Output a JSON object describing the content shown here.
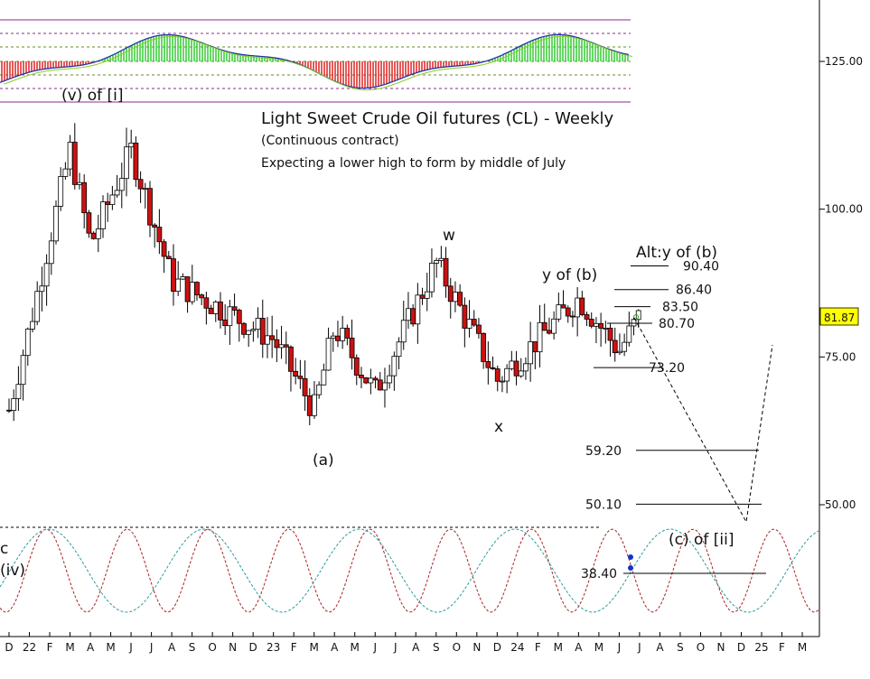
{
  "chart_data": {
    "type": "candlestick",
    "title": "Light Sweet Crude Oil futures (CL) - Weekly",
    "subtitle": "(Continuous contract)",
    "note": "Expecting a lower high to form by middle of July",
    "y_ticks": [
      "125.00",
      "100.00",
      "75.00",
      "50.00"
    ],
    "price_badge": "81.87",
    "x_ticks": [
      "D",
      "22",
      "F",
      "M",
      "A",
      "M",
      "J",
      "J",
      "A",
      "S",
      "O",
      "N",
      "D",
      "23",
      "F",
      "M",
      "A",
      "M",
      "J",
      "J",
      "A",
      "S",
      "O",
      "N",
      "D",
      "24",
      "F",
      "M",
      "A",
      "M",
      "J",
      "J",
      "A",
      "S",
      "O",
      "N",
      "D",
      "25",
      "F",
      "M"
    ],
    "wave_labels": [
      {
        "id": "v-of-i",
        "text": "(v) of [i]"
      },
      {
        "id": "a",
        "text": "(a)"
      },
      {
        "id": "w",
        "text": "w"
      },
      {
        "id": "x",
        "text": "x"
      },
      {
        "id": "y-of-b",
        "text": "y of (b)"
      },
      {
        "id": "alt-y-of-b",
        "text": "Alt:y of (b)"
      },
      {
        "id": "c-of-ii",
        "text": "(c) of [ii]"
      },
      {
        "id": "c-left",
        "text": "c"
      },
      {
        "id": "iv-left",
        "text": "(iv)"
      }
    ],
    "levels": [
      {
        "text": "90.40",
        "value": 90.4
      },
      {
        "text": "86.40",
        "value": 86.4
      },
      {
        "text": "83.50",
        "value": 83.5
      },
      {
        "text": "80.70",
        "value": 80.7
      },
      {
        "text": "73.20",
        "value": 73.2
      },
      {
        "text": "59.20",
        "value": 59.2
      },
      {
        "text": "50.10",
        "value": 50.1
      },
      {
        "text": "38.40",
        "value": 38.4
      }
    ],
    "ohlc_anchors": [
      {
        "t": "2021-12",
        "close": 66
      },
      {
        "t": "2022-01",
        "close": 80
      },
      {
        "t": "2022-03",
        "close": 110
      },
      {
        "t": "2022-04",
        "close": 94
      },
      {
        "t": "2022-06",
        "close": 110
      },
      {
        "t": "2022-08",
        "close": 88
      },
      {
        "t": "2022-11",
        "close": 82
      },
      {
        "t": "2023-01",
        "close": 78
      },
      {
        "t": "2023-03",
        "close": 66
      },
      {
        "t": "2023-04",
        "close": 80
      },
      {
        "t": "2023-06",
        "close": 69
      },
      {
        "t": "2023-09",
        "close": 91
      },
      {
        "t": "2023-12",
        "close": 71
      },
      {
        "t": "2024-04",
        "close": 85
      },
      {
        "t": "2024-06",
        "close": 76
      },
      {
        "t": "2024-07",
        "close": 81.87
      }
    ],
    "projection": [
      {
        "t": "2024-07",
        "value": 82
      },
      {
        "t": "2024-12",
        "value": 42
      },
      {
        "t": "2025-01",
        "value": 76
      }
    ]
  }
}
